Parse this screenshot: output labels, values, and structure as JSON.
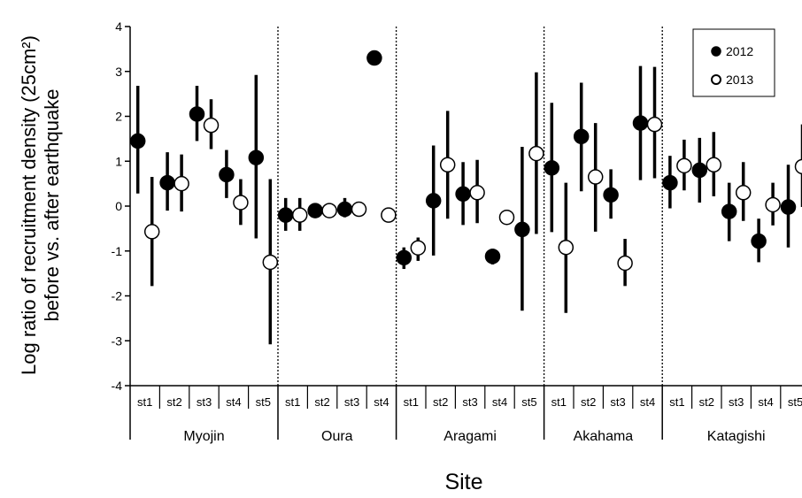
{
  "chart_data": {
    "type": "scatter",
    "ylabel_line1": "Log ratio of recruitment density (25cm²)",
    "ylabel_line2": "before vs. after earthquake",
    "xlabel": "Site",
    "ylim": [
      -4,
      4
    ],
    "yticks": [
      "-4",
      "-3",
      "-2",
      "-1",
      "0",
      "1",
      "2",
      "3",
      "4"
    ],
    "legend_position": "top-right",
    "legend": {
      "item_2012": "2012",
      "item_2013": "2013"
    },
    "series_styles": {
      "2012": "#000000",
      "2013": "#ffffff"
    },
    "sites": [
      {
        "name": "Myojin",
        "stations": [
          "st1",
          "st2",
          "st3",
          "st4",
          "st5"
        ]
      },
      {
        "name": "Oura",
        "stations": [
          "st1",
          "st2",
          "st3",
          "st4"
        ]
      },
      {
        "name": "Aragami",
        "stations": [
          "st1",
          "st2",
          "st3",
          "st4",
          "st5"
        ]
      },
      {
        "name": "Akahama",
        "stations": [
          "st1",
          "st2",
          "st3",
          "st4"
        ]
      },
      {
        "name": "Katagishi",
        "stations": [
          "st1",
          "st2",
          "st3",
          "st4",
          "st5"
        ]
      }
    ],
    "series": [
      {
        "name": "2012",
        "values": [
          1.45,
          0.52,
          2.05,
          0.7,
          1.08,
          -0.2,
          -0.1,
          -0.07,
          3.3,
          -1.15,
          0.12,
          0.27,
          -1.12,
          -0.52,
          0.85,
          1.55,
          0.25,
          1.85,
          0.52,
          0.8,
          -0.12,
          -0.78,
          -0.02
        ],
        "lower": [
          0.28,
          -0.1,
          1.45,
          0.18,
          -0.72,
          -0.55,
          null,
          -0.25,
          null,
          -1.4,
          -1.1,
          -0.42,
          -1.3,
          -2.33,
          -0.58,
          0.33,
          -0.28,
          0.58,
          -0.05,
          0.08,
          -0.78,
          -1.25,
          -0.92
        ],
        "upper": [
          2.68,
          1.2,
          2.68,
          1.25,
          2.92,
          0.18,
          null,
          0.18,
          null,
          -0.92,
          1.35,
          0.98,
          -0.95,
          1.32,
          2.3,
          2.75,
          0.82,
          3.12,
          1.12,
          1.52,
          0.52,
          -0.28,
          0.92
        ]
      },
      {
        "name": "2013",
        "values": [
          -0.57,
          0.5,
          1.8,
          0.08,
          -1.25,
          -0.2,
          -0.1,
          -0.07,
          -0.2,
          -0.93,
          0.92,
          0.3,
          -0.25,
          1.17,
          -0.92,
          0.65,
          -1.27,
          1.82,
          0.9,
          0.92,
          0.3,
          0.03,
          0.88
        ],
        "lower": [
          -1.78,
          -0.12,
          1.27,
          -0.42,
          -3.08,
          -0.55,
          null,
          null,
          null,
          -1.22,
          -0.28,
          -0.38,
          null,
          -0.62,
          -2.38,
          -0.57,
          -1.78,
          0.62,
          0.35,
          0.22,
          -0.33,
          -0.43,
          -0.02
        ],
        "upper": [
          0.65,
          1.15,
          2.38,
          0.6,
          0.6,
          0.18,
          null,
          null,
          null,
          -0.7,
          2.12,
          1.03,
          null,
          2.98,
          0.52,
          1.85,
          -0.73,
          3.1,
          1.48,
          1.65,
          0.98,
          0.52,
          1.82
        ]
      }
    ]
  }
}
